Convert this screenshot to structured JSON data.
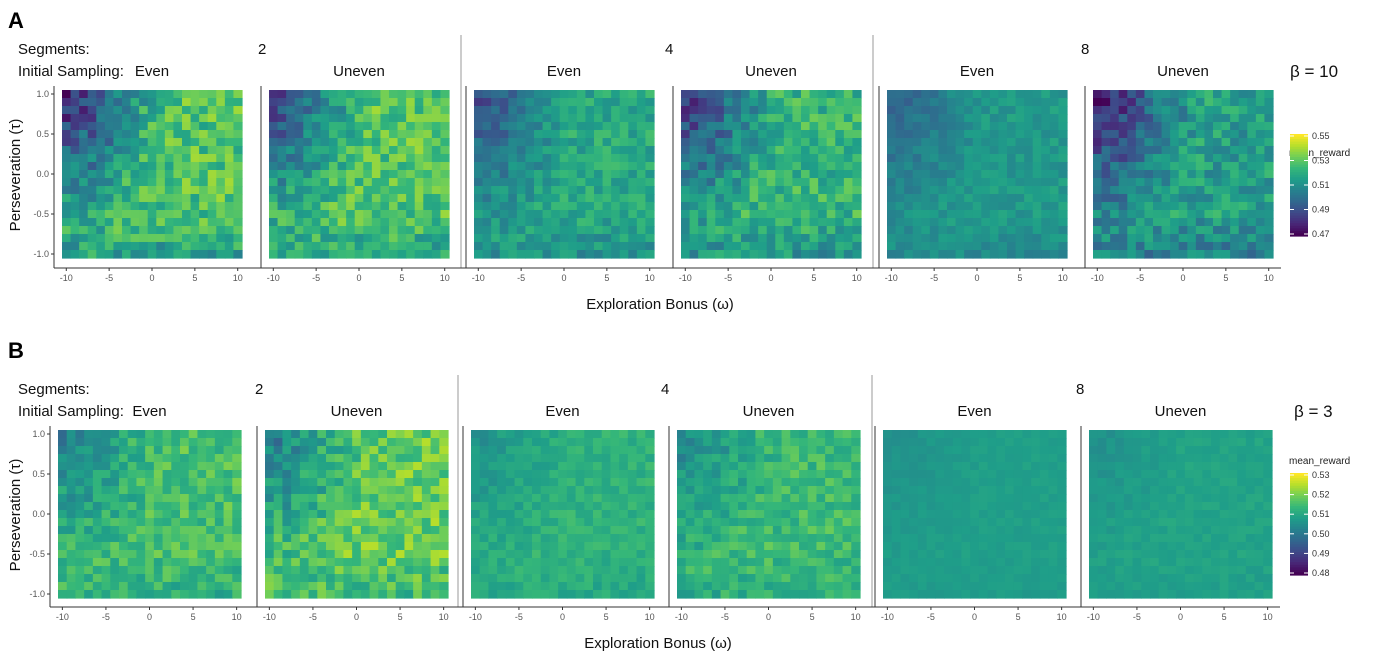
{
  "chart_data": [
    {
      "type": "heatmap",
      "panel_label": "A",
      "beta_label": "β = 10",
      "xlabel": "Exploration Bonus (ω)",
      "ylabel": "Perseveration (τ)",
      "x_ticks": [
        "-10",
        "-5",
        "0",
        "5",
        "10"
      ],
      "y_ticks": [
        "1.0",
        "0.5",
        "0.0",
        "-0.5",
        "-1.0"
      ],
      "xlim": [
        -10,
        10
      ],
      "ylim": [
        -1,
        1
      ],
      "grid_size": [
        21,
        21
      ],
      "strip_labels": {
        "segments_label": "Segments:",
        "initial_sampling_label": "Initial Sampling:",
        "segments": [
          "2",
          "4",
          "8"
        ],
        "sampling": [
          "Even",
          "Uneven",
          "Even",
          "Uneven",
          "Even",
          "Uneven"
        ]
      },
      "legend": {
        "title": "mean_reward",
        "min": 0.47,
        "max": 0.55,
        "ticks": [
          "0.55",
          "0.53",
          "0.51",
          "0.49",
          "0.47"
        ]
      },
      "facets": [
        {
          "segments": "2",
          "sampling": "Even",
          "low_corner": 0.478,
          "peak": 0.532,
          "center": 0.527
        },
        {
          "segments": "2",
          "sampling": "Uneven",
          "low_corner": 0.485,
          "peak": 0.535,
          "center": 0.528
        },
        {
          "segments": "4",
          "sampling": "Even",
          "low_corner": 0.488,
          "peak": 0.525,
          "center": 0.518
        },
        {
          "segments": "4",
          "sampling": "Uneven",
          "low_corner": 0.482,
          "peak": 0.53,
          "center": 0.522
        },
        {
          "segments": "8",
          "sampling": "Even",
          "low_corner": 0.495,
          "peak": 0.518,
          "center": 0.513
        },
        {
          "segments": "8",
          "sampling": "Uneven",
          "low_corner": 0.475,
          "peak": 0.524,
          "center": 0.515
        }
      ]
    },
    {
      "type": "heatmap",
      "panel_label": "B",
      "beta_label": "β = 3",
      "xlabel": "Exploration Bonus (ω)",
      "ylabel": "Perseveration (τ)",
      "x_ticks": [
        "-10",
        "-5",
        "0",
        "5",
        "10"
      ],
      "y_ticks": [
        "1.0",
        "0.5",
        "0.0",
        "-0.5",
        "-1.0"
      ],
      "xlim": [
        -10,
        10
      ],
      "ylim": [
        -1,
        1
      ],
      "grid_size": [
        21,
        21
      ],
      "strip_labels": {
        "segments_label": "Segments:",
        "initial_sampling_label": "Initial Sampling:",
        "segments": [
          "2",
          "4",
          "8"
        ],
        "sampling": [
          "Even",
          "Uneven",
          "Even",
          "Uneven",
          "Even",
          "Uneven"
        ]
      },
      "legend": {
        "title": "mean_reward",
        "min": 0.48,
        "max": 0.53,
        "ticks": [
          "0.53",
          "0.52",
          "0.51",
          "0.50",
          "0.49",
          "0.48"
        ]
      },
      "facets": [
        {
          "segments": "2",
          "sampling": "Even",
          "low_corner": 0.502,
          "peak": 0.526,
          "center": 0.515
        },
        {
          "segments": "2",
          "sampling": "Uneven",
          "low_corner": 0.5,
          "peak": 0.53,
          "center": 0.518
        },
        {
          "segments": "4",
          "sampling": "Even",
          "low_corner": 0.505,
          "peak": 0.518,
          "center": 0.512
        },
        {
          "segments": "4",
          "sampling": "Uneven",
          "low_corner": 0.503,
          "peak": 0.524,
          "center": 0.514
        },
        {
          "segments": "8",
          "sampling": "Even",
          "low_corner": 0.505,
          "peak": 0.51,
          "center": 0.508
        },
        {
          "segments": "8",
          "sampling": "Uneven",
          "low_corner": 0.505,
          "peak": 0.512,
          "center": 0.509
        }
      ]
    }
  ]
}
